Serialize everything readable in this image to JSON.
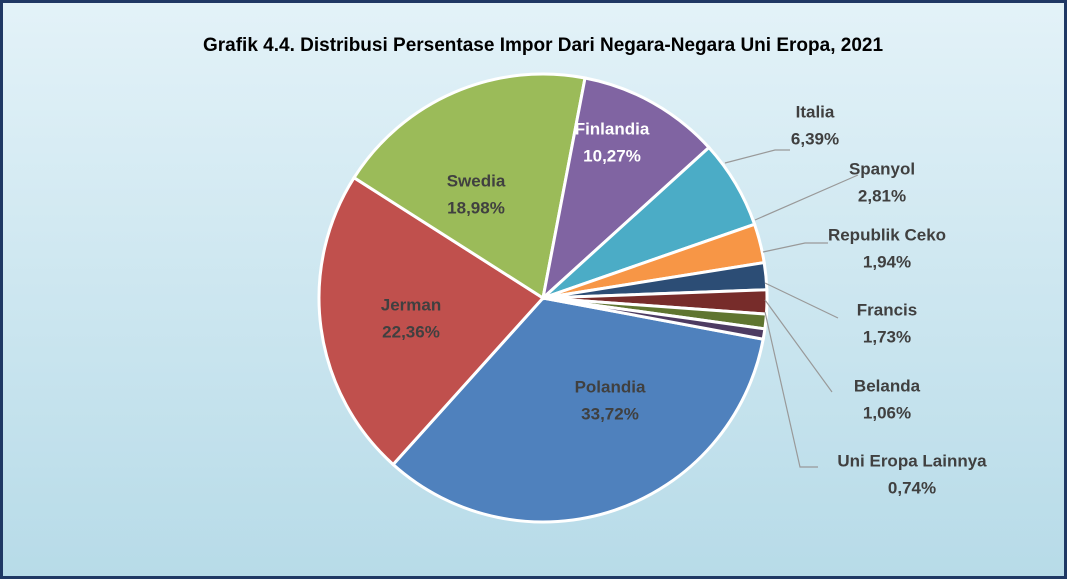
{
  "chart_data": {
    "type": "pie",
    "title": "Grafik 4.4. Distribusi Persentase Impor Dari Negara-Negara Uni Eropa, 2021",
    "categories": [
      "Polandia",
      "Jerman",
      "Swedia",
      "Finlandia",
      "Italia",
      "Spanyol",
      "Republik Ceko",
      "Francis",
      "Belanda",
      "Uni Eropa Lainnya"
    ],
    "values": [
      33.72,
      22.36,
      18.98,
      10.27,
      6.39,
      2.81,
      1.94,
      1.73,
      1.06,
      0.74
    ],
    "value_labels": [
      "33,72%",
      "22,36%",
      "18,98%",
      "10,27%",
      "6,39%",
      "2,81%",
      "1,94%",
      "1,73%",
      "1,06%",
      "0,74%"
    ],
    "colors": [
      "#4f81bd",
      "#c0504d",
      "#9bbb59",
      "#8064a2",
      "#4bacc6",
      "#f79646",
      "#2c4d75",
      "#772c2a",
      "#5f7530",
      "#4d3b62"
    ]
  }
}
